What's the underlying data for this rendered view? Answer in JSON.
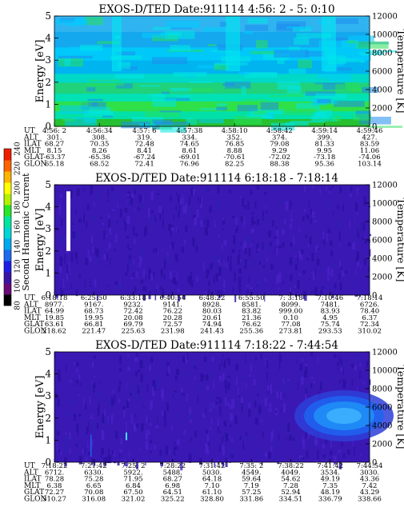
{
  "colorbar": {
    "label": "Second Harmonic Current",
    "ticks": [
      "80",
      "100",
      "120",
      "140",
      "160",
      "180",
      "200",
      "220",
      "240"
    ],
    "colors": [
      "#000000",
      "#6a0a78",
      "#3a14a6",
      "#1e1ee6",
      "#1e6af0",
      "#00a8f0",
      "#00d6d6",
      "#00e6a0",
      "#28e628",
      "#b4f000",
      "#ffff00",
      "#ffb400",
      "#ff6400",
      "#f01e00"
    ]
  },
  "chart_data": [
    {
      "type": "heatmap",
      "title": "EXOS-D/TED   Date:911114  4:56: 2 - 5: 0:10",
      "ylabel": "Energy [eV]",
      "ylabel_right": "Temperature [K]",
      "ylim": [
        0,
        5
      ],
      "ylim_right": [
        0,
        12000
      ],
      "yticks": [
        "0",
        "1",
        "2",
        "3",
        "4",
        "5"
      ],
      "yticks_right": [
        "0",
        "2000",
        "4000",
        "6000",
        "8000",
        "10000",
        "12000"
      ],
      "dominant_color": "#00c8ff",
      "features": "low energies (0-2 eV) green/cyan; upper region light blue-cyan with bright cyan column near 4:58",
      "table": {
        "rows": [
          "UT",
          "ALT",
          "ILAT",
          "MLT",
          "GLAT",
          "GLON"
        ],
        "columns": [
          [
            "4:56: 2",
            "301.",
            "68.27",
            "8.15",
            "-63.37",
            "65.18"
          ],
          [
            "4:56:34",
            "308.",
            "70.35",
            "8.26",
            "-65.36",
            "68.52"
          ],
          [
            "4:57: 6",
            "319.",
            "72.48",
            "8.41",
            "-67.24",
            "72.41"
          ],
          [
            "4:57:38",
            "334.",
            "74.65",
            "8.61",
            "-69.01",
            "76.96"
          ],
          [
            "4:58:10",
            "352.",
            "76.85",
            "8.88",
            "-70.61",
            "82.25"
          ],
          [
            "4:58:42",
            "374.",
            "79.08",
            "9.29",
            "-72.02",
            "88.38"
          ],
          [
            "4:59:14",
            "399.",
            "81.33",
            "9.95",
            "-73.18",
            "95.36"
          ],
          [
            "4:59:46",
            "427.",
            "83.59",
            "11.06",
            "-74.06",
            "103.14"
          ]
        ]
      }
    },
    {
      "type": "heatmap",
      "title": "EXOS-D/TED   Date:911114  6:18:18 - 7:18:14",
      "ylabel": "Energy [eV]",
      "ylabel_right": "Temperature [K]",
      "ylim": [
        0,
        5
      ],
      "ylim_right": [
        0,
        12000
      ],
      "yticks": [
        "0",
        "1",
        "2",
        "3",
        "4",
        "5"
      ],
      "yticks_right": [
        "0",
        "2000",
        "4000",
        "6000",
        "8000",
        "10000",
        "12000"
      ],
      "dominant_color": "#3a18b4",
      "features": "uniform dark blue/purple; white vertical gap near start from about 2 to 4.7 eV",
      "table": {
        "rows": [
          "UT",
          "ALT",
          "ILAT",
          "MLT",
          "GLAT",
          "GLON"
        ],
        "columns": [
          [
            "6:18:18",
            "8977.",
            "64.99",
            "19.85",
            "63.61",
            "218.62"
          ],
          [
            "6:25:50",
            "9167.",
            "68.73",
            "19.95",
            "66.81",
            "221.47"
          ],
          [
            "6:33:18",
            "9232.",
            "72.42",
            "20.08",
            "69.79",
            "225.63"
          ],
          [
            "6:40:54",
            "9141.",
            "76.22",
            "20.28",
            "72.57",
            "231.98"
          ],
          [
            "6:48:22",
            "8928.",
            "80.03",
            "20.61",
            "74.94",
            "241.43"
          ],
          [
            "6:55:50",
            "8581.",
            "83.82",
            "21.36",
            "76.62",
            "255.36"
          ],
          [
            "7: 3:18",
            "8099.",
            "999.00",
            "0.10",
            "77.08",
            "273.81"
          ],
          [
            "7:10:46",
            "7481.",
            "83.93",
            "4.95",
            "75.74",
            "293.53"
          ],
          [
            "7:18:14",
            "6726.",
            "78.40",
            "6.37",
            "72.34",
            "310.02"
          ]
        ]
      }
    },
    {
      "type": "heatmap",
      "title": "EXOS-D/TED   Date:911114  7:18:22 - 7:44:54",
      "ylabel": "Energy [eV]",
      "ylabel_right": "Temperature [K]",
      "ylim": [
        0,
        5
      ],
      "ylim_right": [
        0,
        12000
      ],
      "yticks": [
        "0",
        "1",
        "2",
        "3",
        "4",
        "5"
      ],
      "yticks_right": [
        "0",
        "2000",
        "4000",
        "6000",
        "8000",
        "10000",
        "12000"
      ],
      "dominant_color": "#3a18b4",
      "features": "dark blue/purple background; bright blue patch at right side between about 2 and 4 eV; thin bright streak near 7:25",
      "table": {
        "rows": [
          "UT",
          "ALT",
          "ILAT",
          "MLT",
          "GLAT",
          "GLON"
        ],
        "columns": [
          [
            "7:18:22",
            "6712.",
            "78.28",
            "6.38",
            "72.27",
            "310.27"
          ],
          [
            "7:21:42",
            "6330.",
            "75.28",
            "6.65",
            "70.08",
            "316.08"
          ],
          [
            "7:25: 2",
            "5922.",
            "71.95",
            "6.84",
            "67.50",
            "321.02"
          ],
          [
            "7:28:22",
            "5488.",
            "68.27",
            "6.98",
            "64.51",
            "325.22"
          ],
          [
            "7:31:42",
            "5030.",
            "64.18",
            "7.10",
            "61.10",
            "328.80"
          ],
          [
            "7:35: 2",
            "4549.",
            "59.64",
            "7.19",
            "57.25",
            "331.86"
          ],
          [
            "7:38:22",
            "4049.",
            "54.62",
            "7.28",
            "52.94",
            "334.51"
          ],
          [
            "7:41:42",
            "3534.",
            "49.19",
            "7.35",
            "48.19",
            "336.79"
          ],
          [
            "7:44:54",
            "3030.",
            "43.36",
            "7.42",
            "43.29",
            "338.66"
          ]
        ]
      }
    }
  ]
}
